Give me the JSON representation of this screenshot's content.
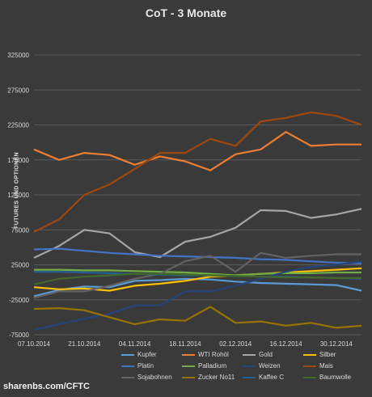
{
  "chart_data": {
    "type": "line",
    "title": "CoT - 3 Monate",
    "ylabel": "FUTURES UND OPTIONEN",
    "xlabel": "",
    "ylim": [
      -75000,
      325000
    ],
    "yticks": [
      "325000",
      "275000",
      "225000",
      "175000",
      "125000",
      "75000",
      "25000",
      "-25000",
      "-75000"
    ],
    "ytick_values": [
      325000,
      275000,
      225000,
      175000,
      125000,
      75000,
      25000,
      -25000,
      -75000
    ],
    "x": [
      "07.10.2014",
      "14.10.2014",
      "21.10.2014",
      "28.10.2014",
      "04.11.2014",
      "11.11.2014",
      "18.11.2014",
      "25.11.2014",
      "02.12.2014",
      "09.12.2014",
      "16.12.2014",
      "23.12.2014",
      "30.12.2014",
      "06.01.2015"
    ],
    "xticks": [
      "07.10.2014",
      "21.10.2014",
      "04.11.2014",
      "18.11.2014",
      "02.12.2014",
      "16.12.2014",
      "30.12.2014"
    ],
    "grid": true,
    "legend_position": "bottom",
    "series": [
      {
        "name": "Kupfer",
        "color": "#5b9bd5",
        "values": [
          -20000,
          -11000,
          -6000,
          -7000,
          2000,
          3000,
          5000,
          4000,
          1000,
          -1000,
          -2000,
          -3000,
          -4000,
          -12000
        ]
      },
      {
        "name": "WTI Rohöl",
        "color": "#ed7d31",
        "values": [
          190000,
          175000,
          185000,
          182000,
          168000,
          180000,
          173000,
          160000,
          183000,
          190000,
          215000,
          195000,
          197000,
          197000
        ]
      },
      {
        "name": "Gold",
        "color": "#a5a5a5",
        "values": [
          35000,
          52000,
          75000,
          70000,
          43000,
          36000,
          58000,
          65000,
          78000,
          103000,
          102000,
          92000,
          97000,
          105000
        ]
      },
      {
        "name": "Silber",
        "color": "#ffc000",
        "values": [
          -7000,
          -10000,
          -9000,
          -12000,
          -5000,
          -2000,
          2000,
          8000,
          10000,
          12000,
          14000,
          16000,
          18000,
          20000
        ]
      },
      {
        "name": "Platin",
        "color": "#4472c4",
        "values": [
          47000,
          48000,
          45000,
          42000,
          40000,
          38000,
          37000,
          36000,
          35000,
          33000,
          32000,
          30000,
          28000,
          27000
        ]
      },
      {
        "name": "Palladium",
        "color": "#70ad47",
        "values": [
          18000,
          18000,
          17000,
          17000,
          16000,
          15000,
          14000,
          12000,
          10000,
          12000,
          13000,
          13000,
          14000,
          14000
        ]
      },
      {
        "name": "Weizen",
        "color": "#264478",
        "values": [
          -68000,
          -60000,
          -52000,
          -45000,
          -33000,
          -33000,
          -13000,
          -13000,
          -5000,
          5000,
          15000,
          22000,
          25000,
          30000
        ]
      },
      {
        "name": "Mais",
        "color": "#9e480e",
        "values": [
          72000,
          90000,
          125000,
          140000,
          162000,
          185000,
          185000,
          205000,
          195000,
          230000,
          235000,
          243000,
          238000,
          225000
        ]
      },
      {
        "name": "Sojabohnen",
        "color": "#636363",
        "values": [
          -22000,
          -13000,
          -13000,
          -5000,
          5000,
          12000,
          30000,
          38000,
          15000,
          42000,
          35000,
          38000,
          40000,
          40000
        ]
      },
      {
        "name": "Zucker No11",
        "color": "#997300",
        "values": [
          -38000,
          -37000,
          -40000,
          -50000,
          -60000,
          -53000,
          -55000,
          -35000,
          -58000,
          -56000,
          -62000,
          -58000,
          -65000,
          -62000
        ]
      },
      {
        "name": "Kaffee C",
        "color": "#255e91",
        "values": [
          15000,
          15000,
          14000,
          13000,
          12000,
          11000,
          10000,
          10000,
          9000,
          8000,
          8000,
          7000,
          6000,
          5000
        ]
      },
      {
        "name": "Baumwolle",
        "color": "#43682b",
        "values": [
          -3000,
          5000,
          8000,
          10000,
          12000,
          12000,
          11000,
          10000,
          9000,
          8000,
          7000,
          7000,
          6000,
          6000
        ]
      }
    ]
  },
  "source": "sharenbs.com/CFTC"
}
